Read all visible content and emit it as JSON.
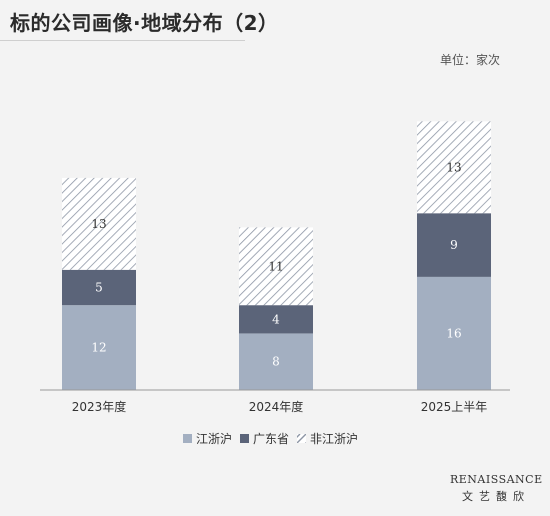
{
  "title": "标的公司画像·地域分布（2）",
  "unit": "单位：家次",
  "colors": {
    "jiangzhehu": "#a3afc1",
    "guangdong": "#5b6479",
    "non_jiangzhehu_stripe": "#8d96a5",
    "axis": "#999999"
  },
  "chart_data": {
    "type": "bar",
    "stacked": true,
    "categories": [
      "2023年度",
      "2024年度",
      "2025上半年"
    ],
    "series": [
      {
        "name": "江浙沪",
        "values": [
          12,
          8,
          16
        ]
      },
      {
        "name": "广东省",
        "values": [
          5,
          4,
          9
        ]
      },
      {
        "name": "非江浙沪",
        "values": [
          13,
          11,
          13
        ]
      }
    ],
    "ylim": [
      0,
      40
    ],
    "legend_position": "bottom",
    "grid": false
  },
  "legend": [
    {
      "label": "江浙沪"
    },
    {
      "label": "广东省"
    },
    {
      "label": "非江浙沪"
    }
  ],
  "logo": {
    "en": "RENAISSANCE",
    "cn": "文艺馥欣"
  }
}
